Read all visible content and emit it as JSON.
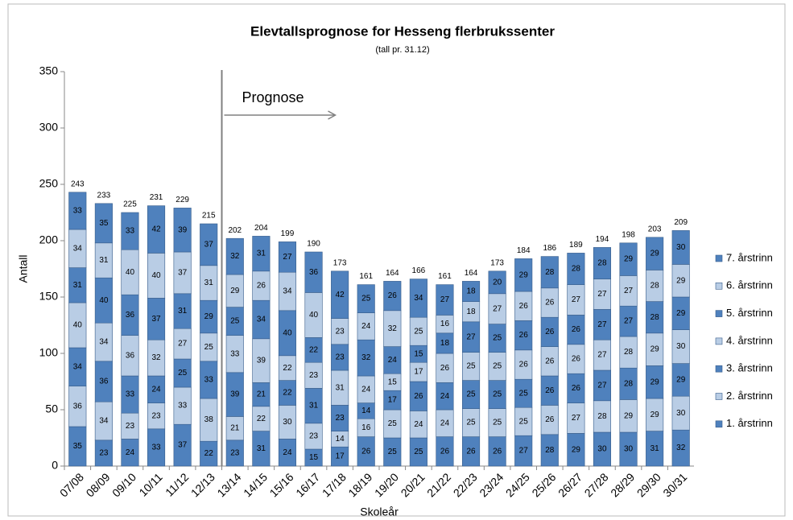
{
  "chart_data": {
    "type": "bar",
    "stacked": true,
    "title": "Elevtallsprognose for Hesseng flerbrukssenter",
    "subtitle": "(tall pr. 31.12)",
    "xlabel": "Skoleår",
    "ylabel": "Antall",
    "annotation": "Prognose",
    "legend": "right",
    "grid": false,
    "ylim": [
      0,
      350
    ],
    "yticks": [
      0,
      50,
      100,
      150,
      200,
      250,
      300,
      350
    ],
    "categories": [
      "07/08",
      "08/09",
      "09/10",
      "10/11",
      "11/12",
      "12/13",
      "13/14",
      "14/15",
      "15/16",
      "16/17",
      "17/18",
      "18/19",
      "19/20",
      "20/21",
      "21/22",
      "22/23",
      "23/24",
      "24/25",
      "25/26",
      "26/27",
      "27/28",
      "28/29",
      "29/30",
      "30/31"
    ],
    "series": [
      {
        "name": "1. årstrinn",
        "color": "#4f81bd",
        "values": [
          35,
          23,
          24,
          33,
          37,
          22,
          23,
          31,
          24,
          15,
          17,
          26,
          25,
          25,
          26,
          26,
          26,
          27,
          28,
          29,
          30,
          30,
          31,
          32
        ]
      },
      {
        "name": "2. årstrinn",
        "color": "#b9cde5",
        "values": [
          36,
          34,
          23,
          23,
          33,
          38,
          21,
          22,
          30,
          23,
          14,
          16,
          25,
          24,
          24,
          25,
          25,
          25,
          26,
          27,
          28,
          29,
          29,
          30
        ]
      },
      {
        "name": "3. årstrinn",
        "color": "#4f81bd",
        "values": [
          34,
          36,
          33,
          24,
          25,
          33,
          39,
          21,
          22,
          31,
          23,
          14,
          17,
          26,
          24,
          25,
          25,
          25,
          26,
          26,
          27,
          28,
          29,
          29
        ]
      },
      {
        "name": "4. årstrinn",
        "color": "#b9cde5",
        "values": [
          40,
          34,
          36,
          32,
          27,
          25,
          33,
          39,
          22,
          23,
          31,
          24,
          15,
          17,
          26,
          25,
          25,
          26,
          26,
          26,
          27,
          28,
          29,
          30
        ]
      },
      {
        "name": "5. årstrinn",
        "color": "#4f81bd",
        "values": [
          31,
          40,
          36,
          37,
          31,
          29,
          25,
          34,
          40,
          22,
          23,
          32,
          24,
          15,
          18,
          27,
          25,
          26,
          26,
          26,
          27,
          27,
          28,
          29
        ]
      },
      {
        "name": "6. årstrinn",
        "color": "#b9cde5",
        "values": [
          34,
          31,
          40,
          40,
          37,
          31,
          29,
          26,
          34,
          40,
          23,
          24,
          32,
          25,
          16,
          18,
          27,
          26,
          26,
          27,
          27,
          27,
          28,
          29
        ]
      },
      {
        "name": "7. årstrinn",
        "color": "#4f81bd",
        "values": [
          33,
          35,
          33,
          42,
          39,
          37,
          32,
          31,
          27,
          36,
          42,
          25,
          26,
          34,
          27,
          18,
          20,
          29,
          28,
          28,
          28,
          29,
          29,
          30
        ]
      }
    ],
    "totals": [
      243,
      233,
      225,
      231,
      229,
      215,
      202,
      204,
      199,
      190,
      173,
      161,
      164,
      166,
      161,
      164,
      173,
      184,
      186,
      189,
      194,
      198,
      203,
      209
    ]
  }
}
